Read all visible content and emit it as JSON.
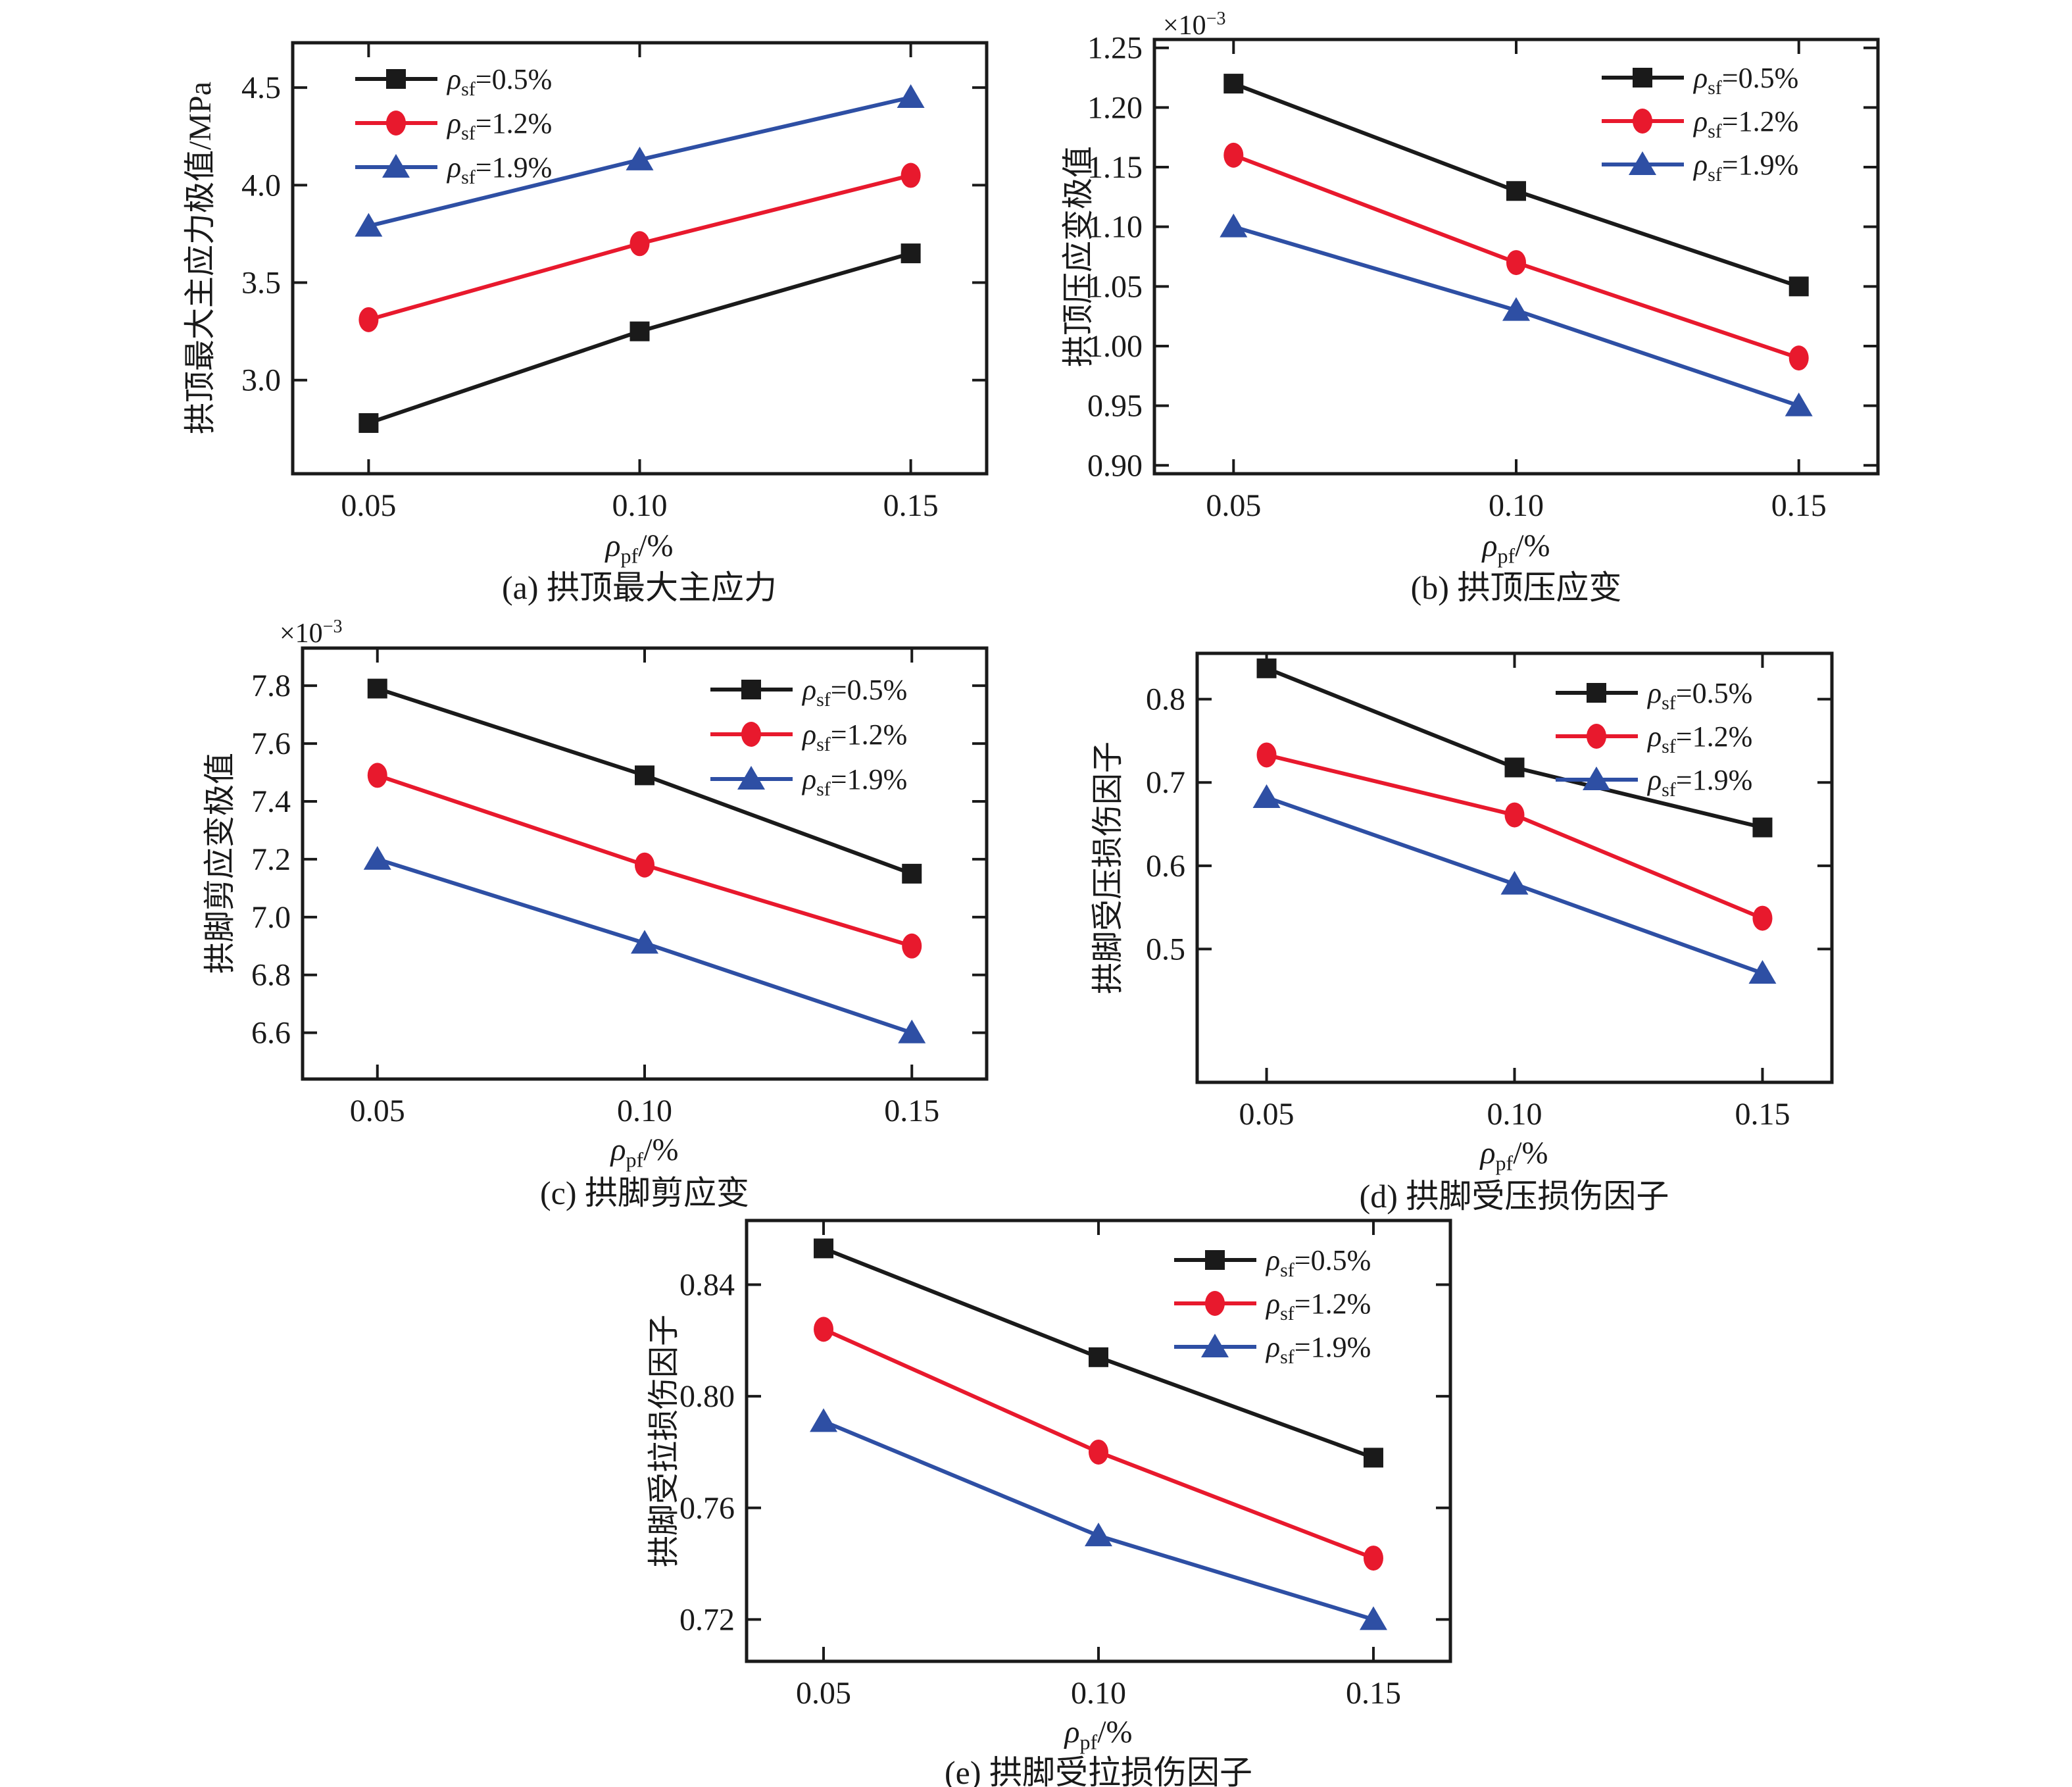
{
  "figure": {
    "background": "#ffffff",
    "axis_color": "#1a1a1a",
    "x_values": [
      0.05,
      0.1,
      0.15
    ]
  },
  "xlabel": {
    "sym": "ρ",
    "sub": "pf",
    "rest": "/%"
  },
  "multiplier": {
    "base": "×10",
    "exp": "−3"
  },
  "legend": [
    {
      "sym": "ρ",
      "sub": "sf",
      "rest": "=0.5%",
      "color": "#1a1a1a",
      "marker": "square"
    },
    {
      "sym": "ρ",
      "sub": "sf",
      "rest": "=1.2%",
      "color": "#e8192d",
      "marker": "circle"
    },
    {
      "sym": "ρ",
      "sub": "sf",
      "rest": "=1.9%",
      "color": "#2e4fa4",
      "marker": "triangle"
    }
  ],
  "chart_data": [
    {
      "id": "a",
      "type": "line",
      "caption": "(a) 拱顶最大主应力",
      "ylabel": "拱顶最大主应力极值/MPa",
      "has_multiplier": false,
      "x": [
        0.05,
        0.1,
        0.15
      ],
      "xtick_labels": [
        "0.05",
        "0.10",
        "0.15"
      ],
      "xlim": [
        0.036,
        0.164
      ],
      "ylim": [
        2.52,
        4.73
      ],
      "yticks": [
        "3.0",
        "3.5",
        "4.0",
        "4.5"
      ],
      "legend_position": "top-left",
      "grid": false,
      "series": [
        {
          "name": "ρsf=0.5%",
          "values": [
            2.78,
            3.25,
            3.65
          ]
        },
        {
          "name": "ρsf=1.2%",
          "values": [
            3.31,
            3.7,
            4.05
          ]
        },
        {
          "name": "ρsf=1.9%",
          "values": [
            3.79,
            4.13,
            4.45
          ]
        }
      ]
    },
    {
      "id": "b",
      "type": "line",
      "caption": "(b) 拱顶压应变",
      "ylabel": "拱顶压应变极值",
      "has_multiplier": true,
      "x": [
        0.05,
        0.1,
        0.15
      ],
      "xtick_labels": [
        "0.05",
        "0.10",
        "0.15"
      ],
      "xlim": [
        0.036,
        0.164
      ],
      "ylim": [
        0.893,
        1.257
      ],
      "yticks": [
        "0.90",
        "0.95",
        "1.00",
        "1.05",
        "1.10",
        "1.15",
        "1.20",
        "1.25"
      ],
      "legend_position": "top-right",
      "grid": false,
      "series": [
        {
          "name": "ρsf=0.5%",
          "values": [
            1.22,
            1.13,
            1.05
          ]
        },
        {
          "name": "ρsf=1.2%",
          "values": [
            1.16,
            1.07,
            0.99
          ]
        },
        {
          "name": "ρsf=1.9%",
          "values": [
            1.1,
            1.03,
            0.95
          ]
        }
      ]
    },
    {
      "id": "c",
      "type": "line",
      "caption": "(c) 拱脚剪应变",
      "ylabel": "拱脚剪应变极值",
      "has_multiplier": true,
      "x": [
        0.05,
        0.1,
        0.15
      ],
      "xtick_labels": [
        "0.05",
        "0.10",
        "0.15"
      ],
      "xlim": [
        0.036,
        0.164
      ],
      "ylim": [
        6.44,
        7.93
      ],
      "yticks": [
        "6.6",
        "6.8",
        "7.0",
        "7.2",
        "7.4",
        "7.6",
        "7.8"
      ],
      "legend_position": "top-right",
      "grid": false,
      "series": [
        {
          "name": "ρsf=0.5%",
          "values": [
            7.79,
            7.49,
            7.15
          ]
        },
        {
          "name": "ρsf=1.2%",
          "values": [
            7.49,
            7.18,
            6.9
          ]
        },
        {
          "name": "ρsf=1.9%",
          "values": [
            7.2,
            6.91,
            6.6
          ]
        }
      ]
    },
    {
      "id": "d",
      "type": "line",
      "caption": "(d) 拱脚受压损伤因子",
      "ylabel": "拱脚受压损伤因子",
      "has_multiplier": false,
      "x": [
        0.05,
        0.1,
        0.15
      ],
      "xtick_labels": [
        "0.05",
        "0.10",
        "0.15"
      ],
      "xlim": [
        0.036,
        0.164
      ],
      "ylim": [
        0.34,
        0.855
      ],
      "yticks": [
        "0.5",
        "0.6",
        "0.7",
        "0.8"
      ],
      "legend_position": "top-right",
      "grid": false,
      "series": [
        {
          "name": "ρsf=0.5%",
          "values": [
            0.837,
            0.718,
            0.646
          ]
        },
        {
          "name": "ρsf=1.2%",
          "values": [
            0.733,
            0.661,
            0.537
          ]
        },
        {
          "name": "ρsf=1.9%",
          "values": [
            0.682,
            0.578,
            0.471
          ]
        }
      ]
    },
    {
      "id": "e",
      "type": "line",
      "caption": "(e) 拱脚受拉损伤因子",
      "ylabel": "拱脚受拉损伤因子",
      "has_multiplier": false,
      "x": [
        0.05,
        0.1,
        0.15
      ],
      "xtick_labels": [
        "0.05",
        "0.10",
        "0.15"
      ],
      "xlim": [
        0.036,
        0.164
      ],
      "ylim": [
        0.705,
        0.863
      ],
      "yticks": [
        "0.72",
        "0.76",
        "0.80",
        "0.84"
      ],
      "legend_position": "top-right",
      "grid": false,
      "series": [
        {
          "name": "ρsf=0.5%",
          "values": [
            0.853,
            0.814,
            0.778
          ]
        },
        {
          "name": "ρsf=1.2%",
          "values": [
            0.824,
            0.78,
            0.742
          ]
        },
        {
          "name": "ρsf=1.9%",
          "values": [
            0.791,
            0.75,
            0.72
          ]
        }
      ]
    }
  ]
}
